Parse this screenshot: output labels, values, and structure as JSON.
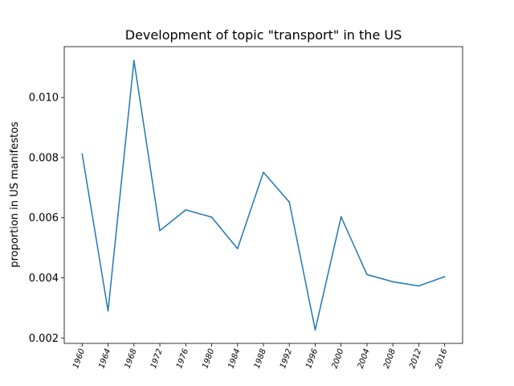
{
  "chart_data": {
    "type": "line",
    "title": "Development of topic \"transport\" in the US",
    "xlabel": "",
    "ylabel": "proportion in US manifestos",
    "x": [
      "1960",
      "1964",
      "1968",
      "1972",
      "1976",
      "1980",
      "1984",
      "1988",
      "1992",
      "1996",
      "2000",
      "2004",
      "2008",
      "2012",
      "2016"
    ],
    "series": [
      {
        "values": [
          0.00812,
          0.0029,
          0.01123,
          0.00557,
          0.00626,
          0.00602,
          0.00497,
          0.00751,
          0.00652,
          0.00227,
          0.00603,
          0.00411,
          0.00387,
          0.00373,
          0.00404
        ],
        "color": "#1f77b4"
      }
    ],
    "yticks": [
      "0.002",
      "0.004",
      "0.006",
      "0.008",
      "0.010"
    ],
    "ylim": [
      0.00182,
      0.01169
    ],
    "grid": false,
    "legend": "none"
  }
}
